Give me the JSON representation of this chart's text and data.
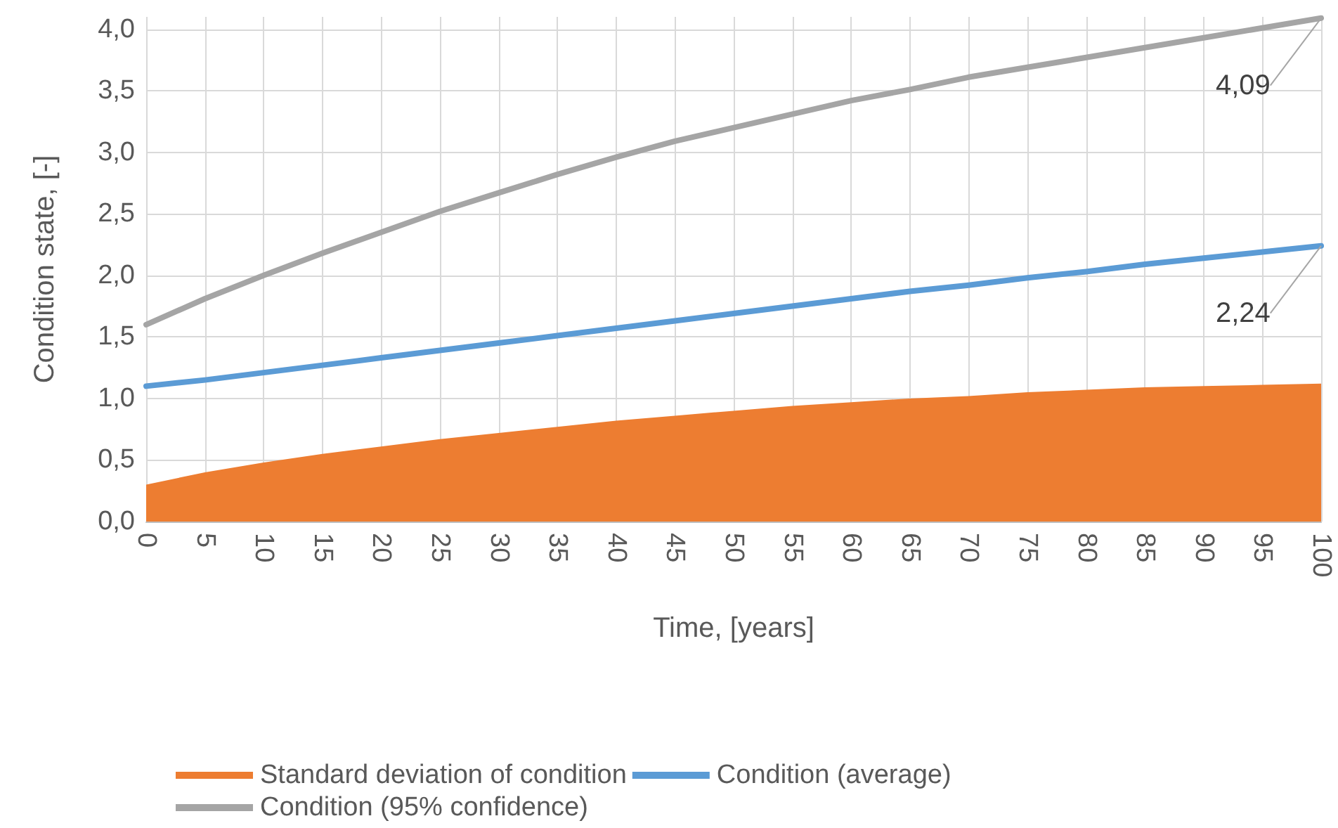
{
  "chart_data": {
    "type": "line",
    "xlabel": "Time, [years]",
    "ylabel": "Condition state, [-]",
    "x": [
      0,
      5,
      10,
      15,
      20,
      25,
      30,
      35,
      40,
      45,
      50,
      55,
      60,
      65,
      70,
      75,
      80,
      85,
      90,
      95,
      100
    ],
    "xlim": [
      0,
      100
    ],
    "xticks": [
      0,
      5,
      10,
      15,
      20,
      25,
      30,
      35,
      40,
      45,
      50,
      55,
      60,
      65,
      70,
      75,
      80,
      85,
      90,
      95,
      100
    ],
    "ylim": [
      0,
      4.1
    ],
    "yticks": [
      {
        "value": 0,
        "label": "0,0"
      },
      {
        "value": 0.5,
        "label": "0,5"
      },
      {
        "value": 1,
        "label": "1,0"
      },
      {
        "value": 1.5,
        "label": "1,5"
      },
      {
        "value": 2,
        "label": "2,0"
      },
      {
        "value": 2.5,
        "label": "2,5"
      },
      {
        "value": 3,
        "label": "3,0"
      },
      {
        "value": 3.5,
        "label": "3,5"
      },
      {
        "value": 4,
        "label": "4,0"
      }
    ],
    "grid": true,
    "legend": "bottom",
    "marker": "none",
    "series": [
      {
        "name": "Standard deviation of condition",
        "type": "area",
        "color": "#ed7d31",
        "values": [
          0.3,
          0.4,
          0.48,
          0.55,
          0.61,
          0.67,
          0.72,
          0.77,
          0.82,
          0.86,
          0.9,
          0.94,
          0.97,
          1.0,
          1.02,
          1.05,
          1.07,
          1.09,
          1.1,
          1.11,
          1.12
        ]
      },
      {
        "name": "Condition (average)",
        "type": "line",
        "color": "#5b9bd5",
        "values": [
          1.1,
          1.15,
          1.21,
          1.27,
          1.33,
          1.39,
          1.45,
          1.51,
          1.57,
          1.63,
          1.69,
          1.75,
          1.81,
          1.87,
          1.92,
          1.98,
          2.03,
          2.09,
          2.14,
          2.19,
          2.24
        ],
        "value_labels": [
          null,
          null,
          null,
          null,
          null,
          null,
          null,
          null,
          null,
          null,
          null,
          null,
          null,
          null,
          null,
          null,
          null,
          null,
          null,
          null,
          "2,24"
        ]
      },
      {
        "name": "Condition (95% confidence)",
        "type": "line",
        "color": "#a5a5a5",
        "values": [
          1.6,
          1.81,
          2.0,
          2.18,
          2.35,
          2.52,
          2.67,
          2.82,
          2.96,
          3.09,
          3.2,
          3.31,
          3.42,
          3.51,
          3.61,
          3.69,
          3.77,
          3.85,
          3.93,
          4.01,
          4.09
        ],
        "value_labels": [
          null,
          null,
          null,
          null,
          null,
          null,
          null,
          null,
          null,
          null,
          null,
          null,
          null,
          null,
          null,
          null,
          null,
          null,
          null,
          null,
          "4,09"
        ]
      }
    ]
  }
}
